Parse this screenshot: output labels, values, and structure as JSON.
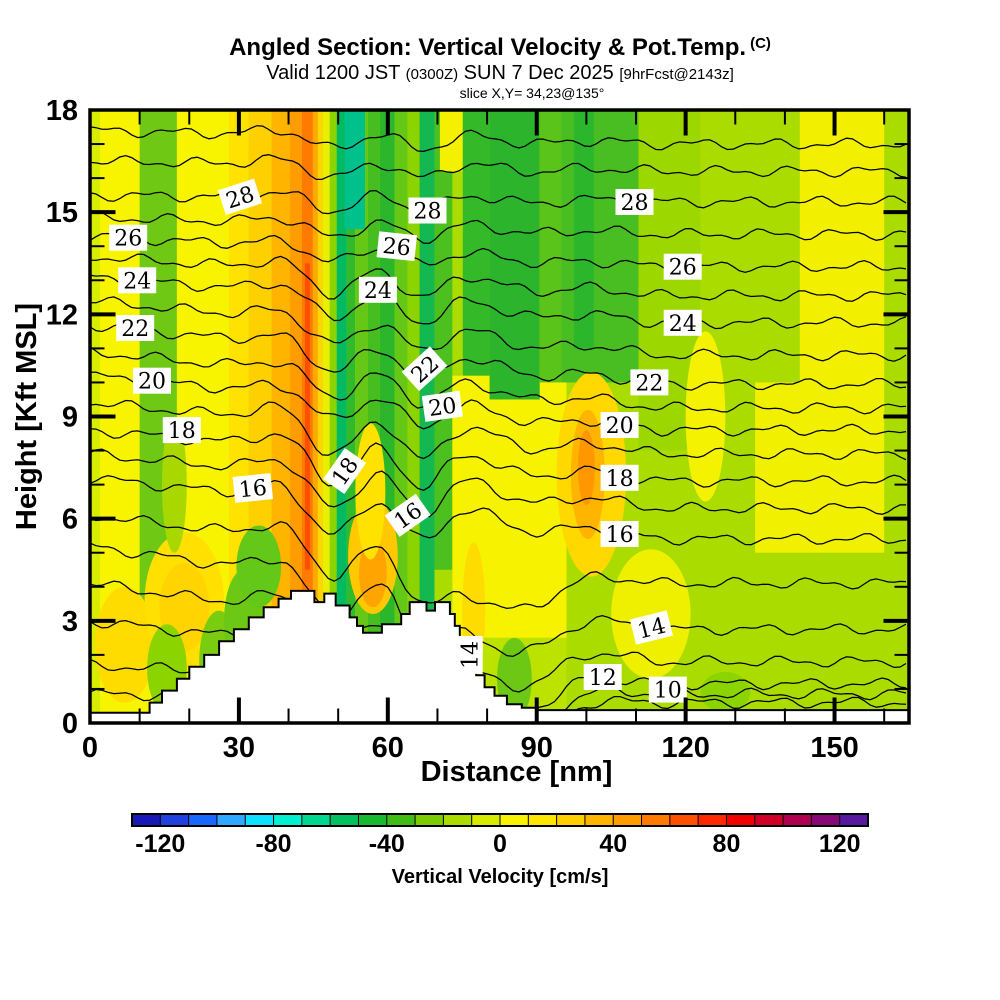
{
  "header": {
    "title": "Angled Section: Vertical Velocity & Pot.Temp.",
    "title_suffix": "(C)",
    "valid_prefix": "Valid 1200 JST",
    "valid_small1": "(0300Z)",
    "valid_mid": "SUN 7 Dec 2025",
    "valid_small2": "[9hrFcst@2143z]",
    "slice_info": "slice X,Y= 34,23@135°"
  },
  "chart_data": {
    "type": "heatmap",
    "subtype": "vertical-cross-section-filled-contour",
    "title": "Angled Section: Vertical Velocity & Pot.Temp. (C)",
    "x_axis": {
      "label": "Distance [nm]",
      "min": 0,
      "max": 165,
      "major_ticks": [
        0,
        30,
        60,
        90,
        120,
        150
      ],
      "minor_step": 10,
      "major_step": 30
    },
    "y_axis": {
      "label": "Height [Kft MSL]",
      "min": 0,
      "max": 18,
      "major_ticks": [
        0,
        3,
        6,
        9,
        12,
        15,
        18
      ],
      "minor_step": 1,
      "major_step": 3
    },
    "colorbar": {
      "label": "Vertical Velocity [cm/s]",
      "min": -130,
      "max": 130,
      "segment_step": 10,
      "tick_labels": [
        -120,
        -80,
        -40,
        0,
        40,
        80,
        120
      ],
      "colors": [
        "#1818B8",
        "#2040E0",
        "#1868FF",
        "#30A8FF",
        "#10E0FF",
        "#00F0D0",
        "#00D890",
        "#00C060",
        "#18B830",
        "#40BC14",
        "#7CCC04",
        "#ABDC00",
        "#D8EA00",
        "#F8F400",
        "#FFE600",
        "#FFD000",
        "#FFB400",
        "#FF9C00",
        "#FF7A00",
        "#FF5000",
        "#FF2800",
        "#F00000",
        "#D00028",
        "#B00050",
        "#880878",
        "#5818A0"
      ]
    },
    "isotherms": {
      "quantity": "Potential Temperature",
      "units": "C",
      "interval": 1,
      "labeled_step": 2,
      "levels": [
        {
          "level": 10,
          "left_kft": 0.85,
          "right_kft": 0.6
        },
        {
          "level": 11,
          "left_kft": 1.7,
          "right_kft": 0.85
        },
        {
          "level": 12,
          "left_kft": 3.0,
          "right_kft": 1.15
        },
        {
          "level": 13,
          "left_kft": 4.1,
          "right_kft": 1.8
        },
        {
          "level": 14,
          "left_kft": 5.2,
          "right_kft": 2.75
        },
        {
          "level": 15,
          "left_kft": 6.1,
          "right_kft": 4.1
        },
        {
          "level": 16,
          "left_kft": 7.2,
          "right_kft": 5.4
        },
        {
          "level": 17,
          "left_kft": 7.9,
          "right_kft": 6.3
        },
        {
          "level": 18,
          "left_kft": 8.6,
          "right_kft": 7.1
        },
        {
          "level": 19,
          "left_kft": 9.4,
          "right_kft": 7.9
        },
        {
          "level": 20,
          "left_kft": 10.2,
          "right_kft": 8.6
        },
        {
          "level": 21,
          "left_kft": 10.9,
          "right_kft": 9.25
        },
        {
          "level": 22,
          "left_kft": 11.7,
          "right_kft": 9.95
        },
        {
          "level": 23,
          "left_kft": 12.4,
          "right_kft": 10.8
        },
        {
          "level": 24,
          "left_kft": 13.1,
          "right_kft": 11.75
        },
        {
          "level": 25,
          "left_kft": 13.7,
          "right_kft": 12.55
        },
        {
          "level": 26,
          "left_kft": 14.3,
          "right_kft": 13.4
        },
        {
          "level": 27,
          "left_kft": 14.85,
          "right_kft": 14.35
        },
        {
          "level": 28,
          "left_kft": 15.5,
          "right_kft": 15.3
        },
        {
          "level": 29,
          "left_kft": 16.5,
          "right_kft": 16.2
        },
        {
          "level": 30,
          "left_kft": 17.4,
          "right_kft": 17.0
        }
      ]
    },
    "contour_labels": [
      {
        "text": "28",
        "x": 30.2,
        "z": 15.45,
        "rot": -18
      },
      {
        "text": "28",
        "x": 68.0,
        "z": 15.05,
        "rot": 0
      },
      {
        "text": "28",
        "x": 109.7,
        "z": 15.3,
        "rot": 0
      },
      {
        "text": "26",
        "x": 7.7,
        "z": 14.25,
        "rot": 0
      },
      {
        "text": "26",
        "x": 61.8,
        "z": 14.0,
        "rot": 6
      },
      {
        "text": "26",
        "x": 119.4,
        "z": 13.4,
        "rot": 0
      },
      {
        "text": "24",
        "x": 9.5,
        "z": 13.0,
        "rot": 0
      },
      {
        "text": "24",
        "x": 58.0,
        "z": 12.72,
        "rot": 0
      },
      {
        "text": "24",
        "x": 119.4,
        "z": 11.75,
        "rot": 0
      },
      {
        "text": "22",
        "x": 9.1,
        "z": 11.6,
        "rot": 0
      },
      {
        "text": "22",
        "x": 67.4,
        "z": 10.4,
        "rot": -42
      },
      {
        "text": "22",
        "x": 112.7,
        "z": 10.0,
        "rot": 0
      },
      {
        "text": "20",
        "x": 12.5,
        "z": 10.05,
        "rot": 0
      },
      {
        "text": "20",
        "x": 71.0,
        "z": 9.3,
        "rot": -8
      },
      {
        "text": "20",
        "x": 106.7,
        "z": 8.75,
        "rot": 0
      },
      {
        "text": "18",
        "x": 18.5,
        "z": 8.6,
        "rot": 0
      },
      {
        "text": "18",
        "x": 51.3,
        "z": 7.4,
        "rot": -55
      },
      {
        "text": "18",
        "x": 106.7,
        "z": 7.2,
        "rot": 0
      },
      {
        "text": "16",
        "x": 32.8,
        "z": 6.9,
        "rot": -6
      },
      {
        "text": "16",
        "x": 64.0,
        "z": 6.1,
        "rot": -35
      },
      {
        "text": "16",
        "x": 106.7,
        "z": 5.55,
        "rot": 0
      },
      {
        "text": "14",
        "x": 113.1,
        "z": 2.8,
        "rot": -14
      },
      {
        "text": "14",
        "x": 76.5,
        "z": 2.0,
        "rot": -90
      },
      {
        "text": "12",
        "x": 103.3,
        "z": 1.35,
        "rot": 0
      },
      {
        "text": "10",
        "x": 116.4,
        "z": 0.98,
        "rot": 0
      }
    ],
    "terrain_profile_nm_kft": [
      [
        0,
        0.3
      ],
      [
        9.5,
        0.3
      ],
      [
        12,
        0.6
      ],
      [
        14.5,
        0.95
      ],
      [
        17.5,
        1.3
      ],
      [
        20,
        1.65
      ],
      [
        23,
        2.0
      ],
      [
        26,
        2.4
      ],
      [
        29,
        2.75
      ],
      [
        32,
        3.1
      ],
      [
        35,
        3.4
      ],
      [
        38,
        3.65
      ],
      [
        40.5,
        3.88
      ],
      [
        44.9,
        3.88
      ],
      [
        45.2,
        3.55
      ],
      [
        46.9,
        3.55
      ],
      [
        47.2,
        3.8
      ],
      [
        49.2,
        3.8
      ],
      [
        49.5,
        3.45
      ],
      [
        51.3,
        3.45
      ],
      [
        52.3,
        3.1
      ],
      [
        53.8,
        2.85
      ],
      [
        55,
        2.65
      ],
      [
        58.5,
        2.65
      ],
      [
        58.8,
        2.9
      ],
      [
        62.4,
        2.9
      ],
      [
        62.7,
        3.2
      ],
      [
        64.4,
        3.55
      ],
      [
        67.5,
        3.55
      ],
      [
        67.8,
        3.3
      ],
      [
        69.2,
        3.3
      ],
      [
        69.5,
        3.55
      ],
      [
        71.5,
        3.55
      ],
      [
        72.5,
        3.2
      ],
      [
        73.5,
        2.85
      ],
      [
        74.5,
        2.5
      ],
      [
        75.5,
        2.1
      ],
      [
        76.5,
        1.75
      ],
      [
        77.8,
        1.4
      ],
      [
        79.5,
        1.05
      ],
      [
        81.5,
        0.8
      ],
      [
        84,
        0.55
      ],
      [
        87,
        0.45
      ],
      [
        90.2,
        0.38
      ],
      [
        165,
        0.35
      ]
    ],
    "velocity_fill": {
      "base_color": "#ABDC00",
      "bands": [
        [
          0,
          28,
          0,
          18,
          "#F8F400"
        ],
        [
          0,
          2,
          0,
          18,
          "#D8EC00"
        ],
        [
          10,
          17.5,
          3.5,
          18,
          "#6EC814"
        ],
        [
          28,
          32,
          0,
          18,
          "#FFE200"
        ],
        [
          32,
          36.6,
          0,
          18,
          "#FFD000"
        ],
        [
          36.6,
          40.3,
          0,
          18,
          "#FFB400"
        ],
        [
          40.3,
          42.7,
          0,
          18,
          "#FF9C00"
        ],
        [
          42.7,
          44.9,
          0,
          18,
          "#FF7A00"
        ],
        [
          43.3,
          44.3,
          4.5,
          13.5,
          "#FF5000"
        ],
        [
          44.9,
          45.9,
          0,
          18,
          "#FFA800"
        ],
        [
          45.9,
          46.9,
          0,
          18,
          "#FFD400"
        ],
        [
          46.9,
          48.3,
          0,
          18,
          "#EAEE00"
        ],
        [
          48.3,
          49.7,
          0,
          18,
          "#8CD400"
        ],
        [
          49.7,
          51.7,
          0,
          18,
          "#00BA62"
        ],
        [
          51.7,
          53.4,
          0,
          18,
          "#30BA2C"
        ],
        [
          53.4,
          56,
          0,
          18,
          "#66C816"
        ],
        [
          51.3,
          55.4,
          14.5,
          18,
          "#00C08C"
        ],
        [
          56,
          58.4,
          0,
          18,
          "#46BE20"
        ],
        [
          58.4,
          61.4,
          0,
          18,
          "#2CB62C"
        ],
        [
          61.4,
          64,
          0,
          18,
          "#66C816"
        ],
        [
          64,
          66.4,
          0,
          18,
          "#8CD400"
        ],
        [
          66.4,
          69.4,
          0,
          18,
          "#14B850"
        ],
        [
          69.4,
          73,
          4.5,
          18,
          "#4CC01E"
        ],
        [
          70.5,
          75.1,
          16.2,
          18,
          "#F4F000"
        ],
        [
          73,
          96,
          2.5,
          10.2,
          "#F6F200"
        ],
        [
          73,
          96,
          0.35,
          2.5,
          "#BCE200"
        ],
        [
          75.1,
          80.5,
          10.2,
          18,
          "#34BA28"
        ],
        [
          80.5,
          90.6,
          9.5,
          18,
          "#2CB42C"
        ],
        [
          90.6,
          95,
          10,
          18,
          "#5AC41A"
        ],
        [
          95,
          110.5,
          10,
          18,
          "#48BE22"
        ],
        [
          97.5,
          101.5,
          11,
          18,
          "#2CB62C"
        ],
        [
          110.5,
          123,
          8,
          18,
          "#9CD800"
        ],
        [
          143,
          160,
          10,
          18,
          "#F2F000"
        ],
        [
          134,
          160,
          5,
          10,
          "#F0F000"
        ]
      ],
      "blobs": [
        [
          7,
          2.3,
          6,
          1.7,
          "#FFDC00"
        ],
        [
          19,
          3.6,
          8,
          2.0,
          "#FFE000"
        ],
        [
          19,
          3.4,
          5,
          1.3,
          "#FFD400"
        ],
        [
          15.5,
          1.6,
          4,
          1.3,
          "#8CD400"
        ],
        [
          26,
          1.8,
          4,
          1.5,
          "#7ACC10"
        ],
        [
          31,
          3.0,
          4,
          1.5,
          "#6CC814"
        ],
        [
          34,
          4.6,
          4.5,
          1.2,
          "#64C818"
        ],
        [
          17,
          7,
          2.5,
          2,
          "#A8D800"
        ],
        [
          57,
          4.9,
          5,
          1.7,
          "#FFC800"
        ],
        [
          57,
          4.4,
          2.8,
          1.0,
          "#FFA400"
        ],
        [
          56.5,
          6.8,
          3,
          2,
          "#FFE200"
        ],
        [
          77.3,
          3.3,
          2.3,
          2.0,
          "#FFDC00"
        ],
        [
          85.5,
          1.3,
          3.5,
          1.2,
          "#6CC814"
        ],
        [
          101,
          7.3,
          7,
          3,
          "#FFD800"
        ],
        [
          100.3,
          7.3,
          3.4,
          1.9,
          "#FFB400"
        ],
        [
          100,
          7.5,
          1.7,
          1.1,
          "#FF9800"
        ],
        [
          113,
          3.2,
          8,
          1.9,
          "#EEF000"
        ],
        [
          124,
          9,
          4,
          2.5,
          "#F4F200"
        ],
        [
          128,
          0.9,
          5,
          0.6,
          "#8CD400"
        ]
      ]
    }
  }
}
